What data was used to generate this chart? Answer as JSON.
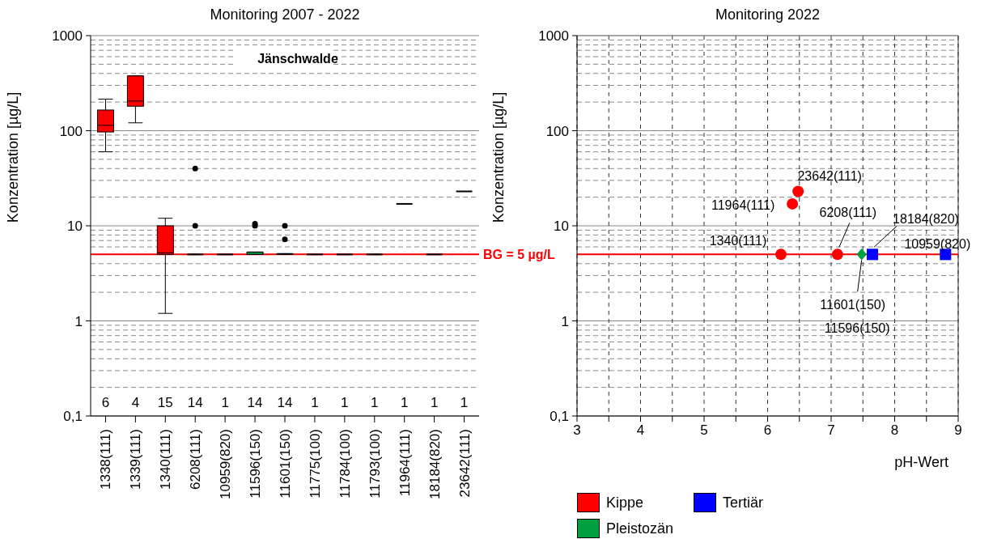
{
  "chart_data": [
    {
      "type": "box",
      "title": "Monitoring 2007 - 2022",
      "ylabel": "Konzentration [µg/L]",
      "categories": [
        "1338(111)",
        "1339(111)",
        "1340(111)",
        "6208(111)",
        "10959(820)",
        "11596(150)",
        "11601(150)",
        "11775(100)",
        "11784(100)",
        "11793(100)",
        "11964(111)",
        "18184(820)",
        "23642(111)"
      ],
      "boxes": [
        {
          "low": 60,
          "q1": 97,
          "median": 114,
          "q3": 165,
          "high": 215
        },
        {
          "low": 121,
          "q1": 181,
          "median": 205,
          "q3": 377,
          "high": 377
        },
        {
          "low": 1.2,
          "q1": 5,
          "median": 5.2,
          "q3": 10,
          "high": 12
        },
        {
          "low": 5,
          "q1": 5,
          "median": 5,
          "q3": 5,
          "high": 5,
          "outliers": [
            10,
            40
          ]
        },
        {
          "low": 5,
          "q1": 5,
          "median": 5,
          "q3": 5,
          "high": 5
        },
        {
          "low": 5,
          "q1": 5,
          "median": 5,
          "q3": 5.3,
          "high": 5.3,
          "outliers": [
            10,
            10.5
          ]
        },
        {
          "low": 5,
          "q1": 5,
          "median": 5,
          "q3": 5.1,
          "high": 5.1,
          "outliers": [
            7.2,
            10
          ]
        },
        {
          "low": 5,
          "q1": 5,
          "median": 5,
          "q3": 5,
          "high": 5
        },
        {
          "low": 5,
          "q1": 5,
          "median": 5,
          "q3": 5,
          "high": 5
        },
        {
          "low": 5,
          "q1": 5,
          "median": 5,
          "q3": 5,
          "high": 5
        },
        {
          "low": 17,
          "q1": 17,
          "median": 17,
          "q3": 17,
          "high": 17
        },
        {
          "low": 5,
          "q1": 5,
          "median": 5,
          "q3": 5,
          "high": 5
        },
        {
          "low": 23,
          "q1": 23,
          "median": 23,
          "q3": 23,
          "high": 23
        }
      ],
      "colors": [
        "#ff0000",
        "#ff0000",
        "#ff0000",
        "#000000",
        "#000000",
        "#00a040",
        "#000000",
        "#000000",
        "#000000",
        "#000000",
        "#000000",
        "#000000",
        "#000000"
      ],
      "log": true,
      "ylim": [
        0.1,
        1000
      ],
      "yticks": [
        {
          "value": 0.1,
          "label": "0,1"
        },
        {
          "value": 0.2,
          "label": null
        },
        {
          "value": 0.3,
          "label": null
        },
        {
          "value": 0.4,
          "label": null
        },
        {
          "value": 0.5,
          "label": null
        },
        {
          "value": 0.6,
          "label": null
        },
        {
          "value": 0.7,
          "label": null
        },
        {
          "value": 0.8,
          "label": null
        },
        {
          "value": 0.9,
          "label": null
        },
        1,
        {
          "value": 2,
          "label": null
        },
        {
          "value": 3,
          "label": null
        },
        {
          "value": 4,
          "label": null
        },
        {
          "value": 5,
          "label": null
        },
        {
          "value": 6,
          "label": null
        },
        {
          "value": 7,
          "label": null
        },
        {
          "value": 8,
          "label": null
        },
        {
          "value": 9,
          "label": null
        },
        10,
        {
          "value": 20,
          "label": null
        },
        {
          "value": 30,
          "label": null
        },
        {
          "value": 40,
          "label": null
        },
        {
          "value": 50,
          "label": null
        },
        {
          "value": 60,
          "label": null
        },
        {
          "value": 70,
          "label": null
        },
        {
          "value": 80,
          "label": null
        },
        {
          "value": 90,
          "label": null
        },
        100,
        {
          "value": 200,
          "label": null
        },
        {
          "value": 300,
          "label": null
        },
        {
          "value": 400,
          "label": null
        },
        {
          "value": 500,
          "label": null
        },
        {
          "value": 600,
          "label": null
        },
        {
          "value": 700,
          "label": null
        },
        {
          "value": 800,
          "label": null
        },
        {
          "value": 900,
          "label": null
        },
        1000
      ],
      "grid": "y",
      "ref_lines": [
        {
          "axis": "y",
          "value": 5,
          "label": "BG = 5 µg/L",
          "color": "#ff0000"
        }
      ],
      "annotations": [
        "Jänschwalde",
        "6",
        "4",
        "15",
        "14",
        "1",
        "14",
        "14",
        "1",
        "1",
        "1",
        "1",
        "1",
        "1"
      ]
    },
    {
      "type": "scatter",
      "title": "Monitoring 2022",
      "ylabel": "Konzentration [µg/L]",
      "xlabel": "pH-Wert",
      "series": [
        {
          "name": "Kippe",
          "color": "#ff0000",
          "marker": "circle",
          "x": [
            6.21,
            7.1,
            6.39,
            6.48
          ],
          "values": [
            5,
            5,
            17,
            23
          ]
        },
        {
          "name": "Pleistozän",
          "color": "#00a040",
          "marker": "diamond",
          "x": [
            7.48,
            7.48
          ],
          "values": [
            5,
            5
          ]
        },
        {
          "name": "Tertiär",
          "color": "#0000ff",
          "marker": "square",
          "x": [
            7.65,
            8.8
          ],
          "values": [
            5,
            5
          ]
        }
      ],
      "xlim": [
        3,
        9
      ],
      "xticks": [
        3,
        {
          "value": 3.5,
          "label": null
        },
        4,
        {
          "value": 4.5,
          "label": null
        },
        5,
        {
          "value": 5.5,
          "label": null
        },
        6,
        {
          "value": 6.5,
          "label": null
        },
        7,
        {
          "value": 7.5,
          "label": null
        },
        8,
        {
          "value": 8.5,
          "label": null
        },
        9
      ],
      "log": true,
      "ylim": [
        0.1,
        1000
      ],
      "yticks": [
        {
          "value": 0.1,
          "label": "0,1"
        },
        {
          "value": 0.2,
          "label": null
        },
        {
          "value": 0.3,
          "label": null
        },
        {
          "value": 0.4,
          "label": null
        },
        {
          "value": 0.5,
          "label": null
        },
        {
          "value": 0.6,
          "label": null
        },
        {
          "value": 0.7,
          "label": null
        },
        {
          "value": 0.8,
          "label": null
        },
        {
          "value": 0.9,
          "label": null
        },
        1,
        {
          "value": 2,
          "label": null
        },
        {
          "value": 3,
          "label": null
        },
        {
          "value": 4,
          "label": null
        },
        {
          "value": 5,
          "label": null
        },
        {
          "value": 6,
          "label": null
        },
        {
          "value": 7,
          "label": null
        },
        {
          "value": 8,
          "label": null
        },
        {
          "value": 9,
          "label": null
        },
        10,
        {
          "value": 20,
          "label": null
        },
        {
          "value": 30,
          "label": null
        },
        {
          "value": 40,
          "label": null
        },
        {
          "value": 50,
          "label": null
        },
        {
          "value": 60,
          "label": null
        },
        {
          "value": 70,
          "label": null
        },
        {
          "value": 80,
          "label": null
        },
        {
          "value": 90,
          "label": null
        },
        100,
        {
          "value": 200,
          "label": null
        },
        {
          "value": 300,
          "label": null
        },
        {
          "value": 400,
          "label": null
        },
        {
          "value": 500,
          "label": null
        },
        {
          "value": 600,
          "label": null
        },
        {
          "value": 700,
          "label": null
        },
        {
          "value": 800,
          "label": null
        },
        {
          "value": 900,
          "label": null
        },
        1000
      ],
      "grid": true,
      "legend": "bottom",
      "ref_lines": [
        {
          "axis": "y",
          "value": 5,
          "color": "#ff0000"
        }
      ],
      "annotations": [
        {
          "text": "1340(111)",
          "x": 6.21,
          "y": 5
        },
        {
          "text": "6208(111)",
          "x": 7.1,
          "y": 5
        },
        {
          "text": "11601(150)",
          "x": 7.48,
          "y": 5
        },
        "11596(150)",
        {
          "text": "18184(820)",
          "x": 7.65,
          "y": 5
        },
        {
          "text": "10959(820)",
          "x": 8.8,
          "y": 5
        },
        {
          "text": "11964(111)",
          "x": 6.39,
          "y": 17
        },
        {
          "text": "23642(111)",
          "x": 6.48,
          "y": 23
        }
      ]
    }
  ]
}
